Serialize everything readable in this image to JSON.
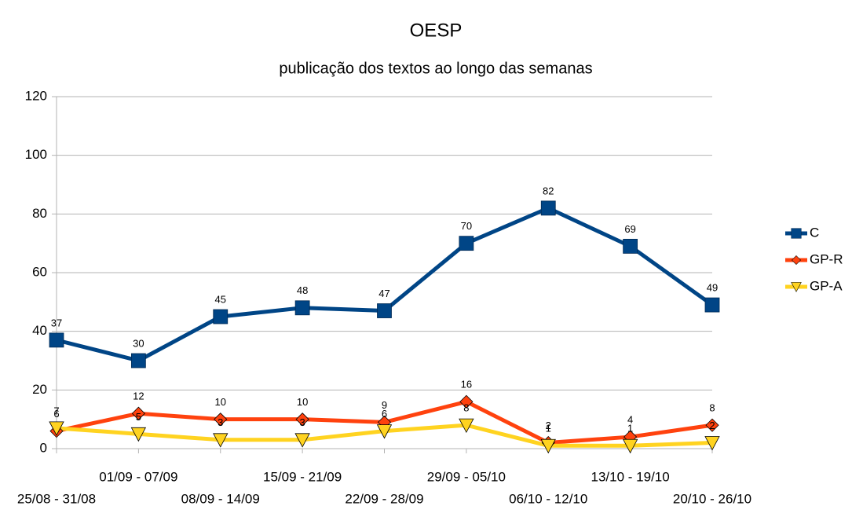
{
  "chart_data": {
    "type": "line",
    "title": "OESP",
    "subtitle": "publicação dos textos ao longo das semanas",
    "categories": [
      "25/08 - 31/08",
      "01/09 - 07/09",
      "08/09 - 14/09",
      "15/09 - 21/09",
      "22/09 - 28/09",
      "29/09 - 05/10",
      "06/10 - 12/10",
      "13/10 - 19/10",
      "20/10 - 26/10"
    ],
    "series": [
      {
        "name": "C",
        "color": "#004586",
        "marker": "square",
        "values": [
          37,
          30,
          45,
          48,
          47,
          70,
          82,
          69,
          49
        ]
      },
      {
        "name": "GP-R",
        "color": "#ff420e",
        "marker": "diamond",
        "values": [
          6,
          12,
          10,
          10,
          9,
          16,
          2,
          4,
          8
        ]
      },
      {
        "name": "GP-A",
        "color": "#ffd320",
        "marker": "triangle-down",
        "values": [
          7,
          5,
          3,
          3,
          6,
          8,
          1,
          1,
          2
        ]
      }
    ],
    "ylim": [
      0,
      120
    ],
    "yticks": [
      0,
      20,
      40,
      60,
      80,
      100,
      120
    ],
    "grid": true,
    "legend": "right"
  }
}
